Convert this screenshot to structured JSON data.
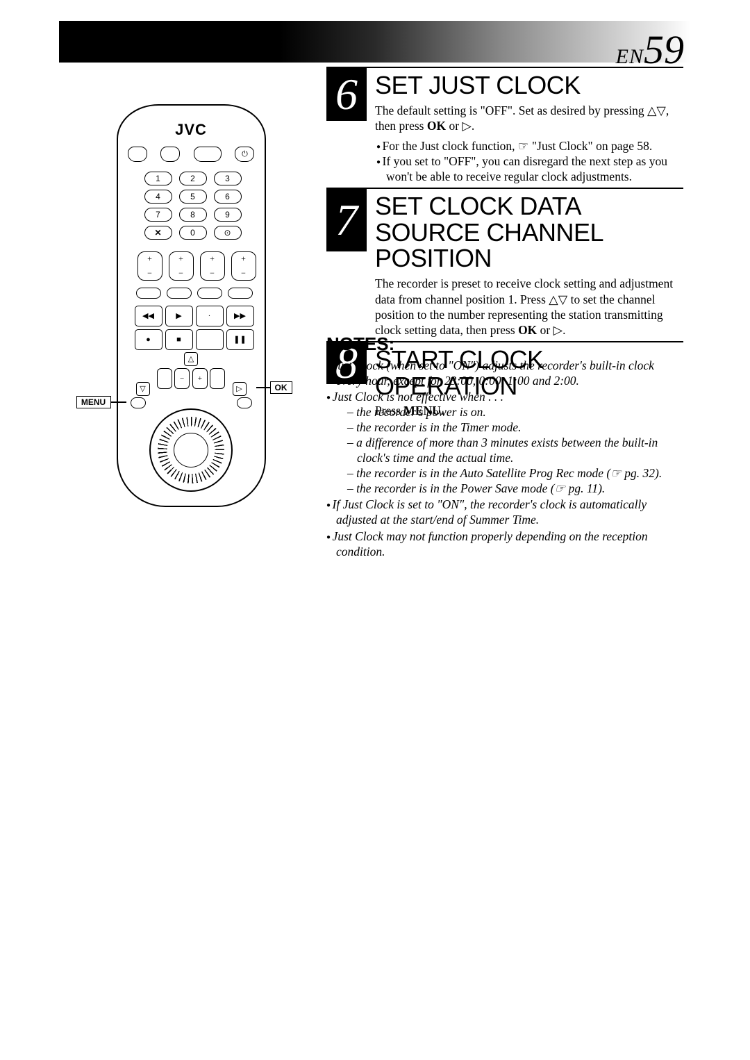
{
  "page": {
    "lang_code": "EN",
    "page_number": "59"
  },
  "remote": {
    "brand": "JVC",
    "menu_label": "MENU",
    "ok_label": "OK",
    "numpad": [
      "1",
      "2",
      "3",
      "4",
      "5",
      "6",
      "7",
      "8",
      "9",
      "✕",
      "0",
      "⊙"
    ]
  },
  "steps": [
    {
      "num": "6",
      "title": "SET JUST CLOCK",
      "body_html": "The default setting is \"OFF\". Set as desired by pressing △▽, then press <b>OK</b> or ▷.",
      "bullets": [
        "For the Just clock function, ☞ \"Just Clock\" on page 58.",
        "If you set to \"OFF\", you can disregard the next step as you won't be able to receive regular clock adjustments."
      ]
    },
    {
      "num": "7",
      "title": "SET CLOCK DATA SOURCE CHANNEL POSITION",
      "body_html": "The recorder is preset to receive clock setting and adjustment data from channel position 1. Press △▽ to set the channel position to the number representing the station transmitting clock setting data, then press <b>OK</b> or ▷.",
      "bullets": []
    },
    {
      "num": "8",
      "title": "START CLOCK OPERATION",
      "body_html": "Press <b>MENU</b>.",
      "bullets": []
    }
  ],
  "notes": {
    "title": "NOTES:",
    "items": [
      {
        "text": "Just Clock (when set to \"ON\") adjusts the recorder's built-in clock every hour, except for 23:00, 0:00, 1:00 and 2:00."
      },
      {
        "text": "Just Clock is not effective when . . .",
        "sub": [
          "the recorder's power is on.",
          "the recorder is in the Timer mode.",
          "a difference of more than 3 minutes exists between the built-in clock's time and the actual time.",
          "the recorder is in the Auto Satellite Prog Rec mode (☞ pg. 32).",
          "the recorder is in the Power Save mode (☞ pg. 11)."
        ]
      },
      {
        "text": "If Just Clock is set to \"ON\", the recorder's clock is automatically adjusted at the start/end of Summer Time."
      },
      {
        "text": "Just Clock may not function properly depending on the reception condition."
      }
    ]
  },
  "colors": {
    "black": "#000000",
    "white": "#ffffff"
  }
}
